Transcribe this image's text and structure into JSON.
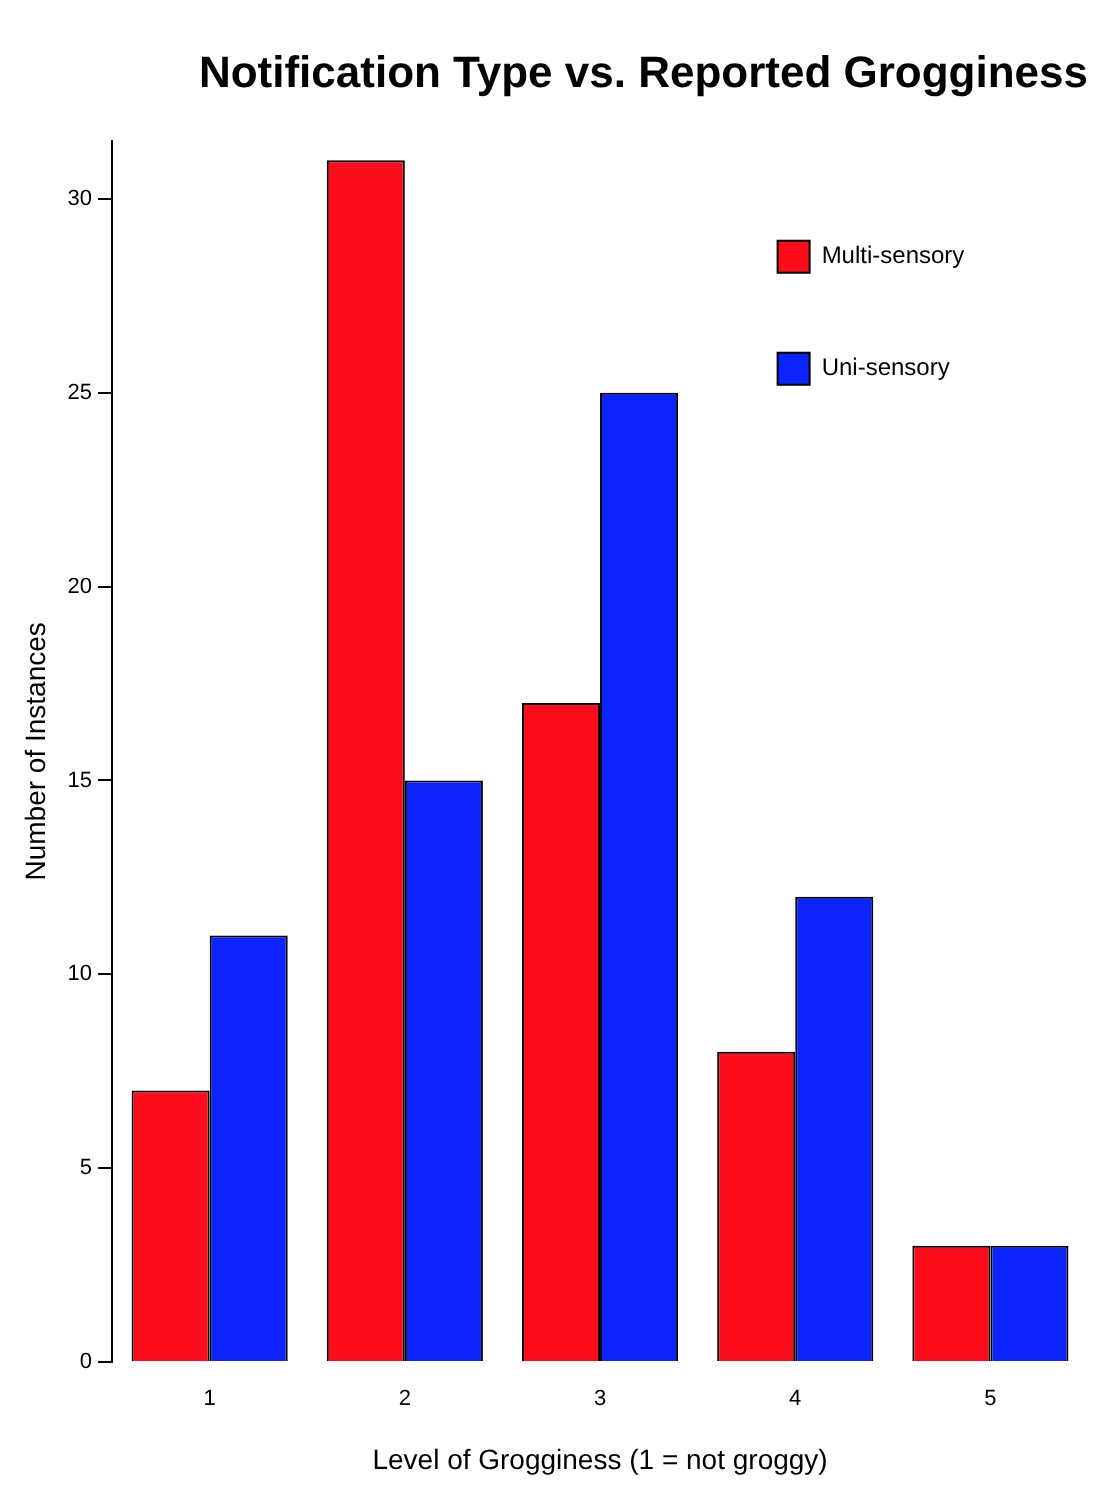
{
  "chart_data": {
    "type": "bar",
    "title": "Notification Type vs. Reported Grogginess",
    "xlabel": "Level of Grogginess (1 = not groggy)",
    "ylabel": "Number of Instances",
    "categories": [
      "1",
      "2",
      "3",
      "4",
      "5"
    ],
    "series": [
      {
        "name": "Multi-sensory",
        "color": "#fc0d1b",
        "values": [
          7,
          31,
          17,
          8,
          3
        ]
      },
      {
        "name": "Uni-sensory",
        "color": "#0b24fb",
        "values": [
          11,
          15,
          25,
          12,
          3
        ]
      }
    ],
    "ylim": [
      0,
      31.5
    ],
    "yticks": [
      0,
      5,
      10,
      15,
      20,
      25,
      30
    ],
    "grid": false,
    "legend": "top right"
  }
}
